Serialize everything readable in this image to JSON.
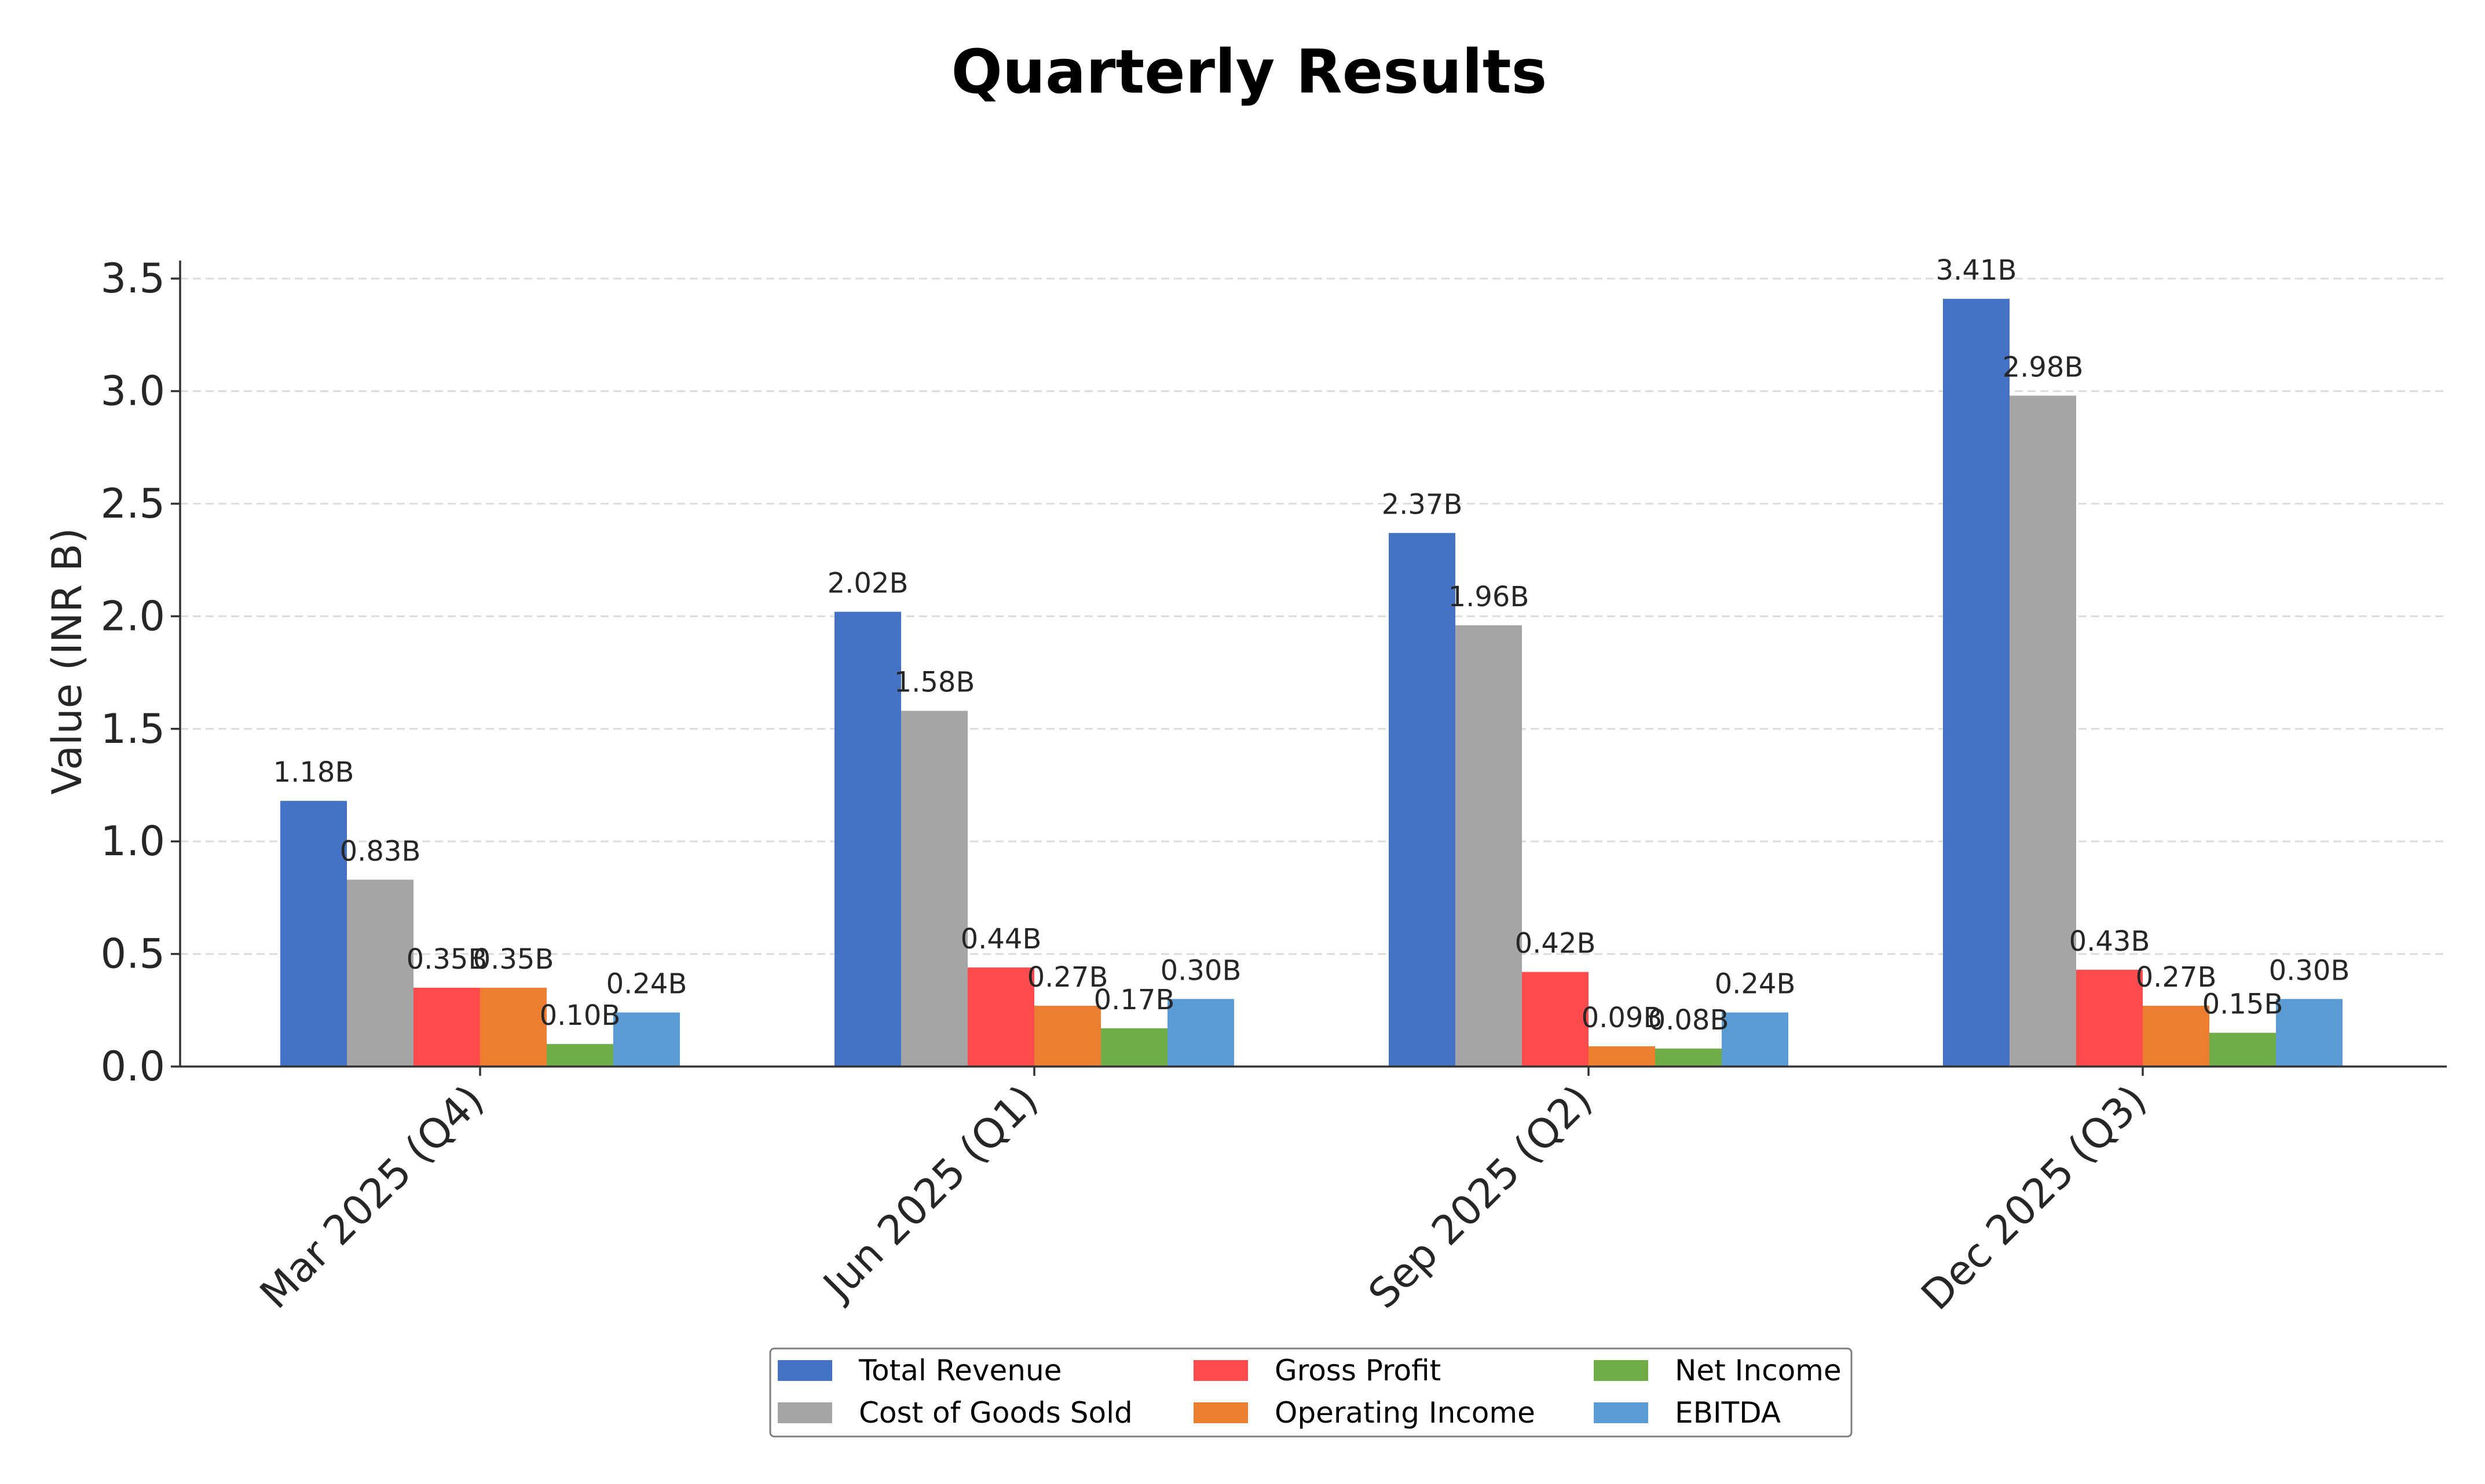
{
  "chart_data": {
    "type": "bar",
    "title": "Quarterly Results",
    "xlabel": "",
    "ylabel": "Value (INR B)",
    "ylim": [
      0,
      3.58
    ],
    "yticks": [
      "0.0",
      "0.5",
      "1.0",
      "1.5",
      "2.0",
      "2.5",
      "3.0",
      "3.5"
    ],
    "grid": "y-dashed",
    "legend_position": "bottom-center",
    "categories": [
      "Mar 2025 (Q4)",
      "Jun 2025 (Q1)",
      "Sep 2025 (Q2)",
      "Dec 2025 (Q3)"
    ],
    "series": [
      {
        "name": "Total Revenue",
        "color": "#4472c4",
        "values": [
          1.18,
          2.02,
          2.37,
          3.41
        ],
        "labels": [
          "1.18B",
          "2.02B",
          "2.37B",
          "3.41B"
        ]
      },
      {
        "name": "Cost of Goods Sold",
        "color": "#a5a5a5",
        "values": [
          0.83,
          1.58,
          1.96,
          2.98
        ],
        "labels": [
          "0.83B",
          "1.58B",
          "1.96B",
          "2.98B"
        ]
      },
      {
        "name": "Gross Profit",
        "color": "#ff4b4b",
        "values": [
          0.35,
          0.44,
          0.42,
          0.43
        ],
        "labels": [
          "0.35B",
          "0.44B",
          "0.42B",
          "0.43B"
        ]
      },
      {
        "name": "Operating Income",
        "color": "#ed7d31",
        "values": [
          0.35,
          0.27,
          0.09,
          0.27
        ],
        "labels": [
          "0.35B",
          "0.27B",
          "0.09B",
          "0.27B"
        ]
      },
      {
        "name": "Net Income",
        "color": "#70ad47",
        "values": [
          0.1,
          0.17,
          0.08,
          0.15
        ],
        "labels": [
          "0.10B",
          "0.17B",
          "0.08B",
          "0.15B"
        ]
      },
      {
        "name": "EBITDA",
        "color": "#5b9bd5",
        "values": [
          0.24,
          0.3,
          0.24,
          0.3
        ],
        "labels": [
          "0.24B",
          "0.30B",
          "0.24B",
          "0.30B"
        ]
      }
    ]
  }
}
